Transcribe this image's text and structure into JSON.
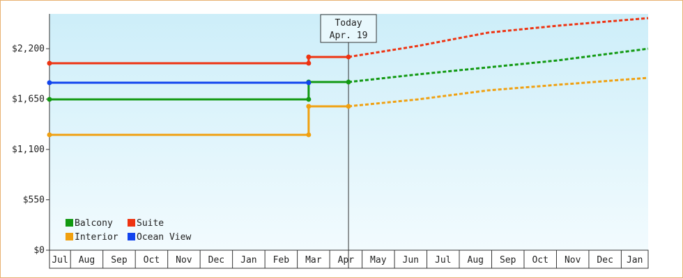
{
  "chart_data": {
    "type": "step-line",
    "categories": [
      "Jul",
      "Aug",
      "Sep",
      "Oct",
      "Nov",
      "Dec",
      "Jan",
      "Feb",
      "Mar",
      "Apr",
      "May",
      "Jun",
      "Jul",
      "Aug",
      "Sep",
      "Oct",
      "Nov",
      "Dec",
      "Jan"
    ],
    "xlim": [
      0.35,
      18.83
    ],
    "ylim": [
      0,
      2580
    ],
    "yticks": [
      {
        "value": 0,
        "label": "$0"
      },
      {
        "value": 550,
        "label": "$550"
      },
      {
        "value": 1100,
        "label": "$1,100"
      },
      {
        "value": 1650,
        "label": "$1,650"
      },
      {
        "value": 2200,
        "label": "$2,200"
      }
    ],
    "today": {
      "label": "Today",
      "date": "Apr. 19",
      "x": 9.58
    },
    "legend": "lower left",
    "series": [
      {
        "name": "Balcony",
        "color": "#119911",
        "x": [
          0.35,
          8.35,
          8.35,
          9.58
        ],
        "values": [
          1647,
          1647,
          1836,
          1836
        ],
        "forecast_x": [
          9.58,
          11.73,
          13.88,
          16.03,
          18.83
        ],
        "forecast_values": [
          1836,
          1920,
          1996,
          2072,
          2200
        ]
      },
      {
        "name": "Suite",
        "color": "#ee3311",
        "x": [
          0.35,
          8.35,
          8.35,
          9.58
        ],
        "values": [
          2041,
          2041,
          2110,
          2110
        ],
        "forecast_x": [
          9.58,
          11.73,
          13.88,
          16.03,
          18.83
        ],
        "forecast_values": [
          2110,
          2231,
          2375,
          2451,
          2534
        ]
      },
      {
        "name": "Interior",
        "color": "#f0a010",
        "x": [
          0.35,
          8.35,
          8.35,
          9.58
        ],
        "values": [
          1260,
          1260,
          1571,
          1571
        ],
        "forecast_x": [
          9.58,
          11.73,
          13.88,
          16.03,
          18.83
        ],
        "forecast_values": [
          1571,
          1647,
          1745,
          1806,
          1882
        ]
      },
      {
        "name": "Ocean View",
        "color": "#1144ee",
        "x": [
          0.35,
          8.35
        ],
        "values": [
          1829,
          1829
        ],
        "forecast_x": [],
        "forecast_values": []
      }
    ]
  }
}
